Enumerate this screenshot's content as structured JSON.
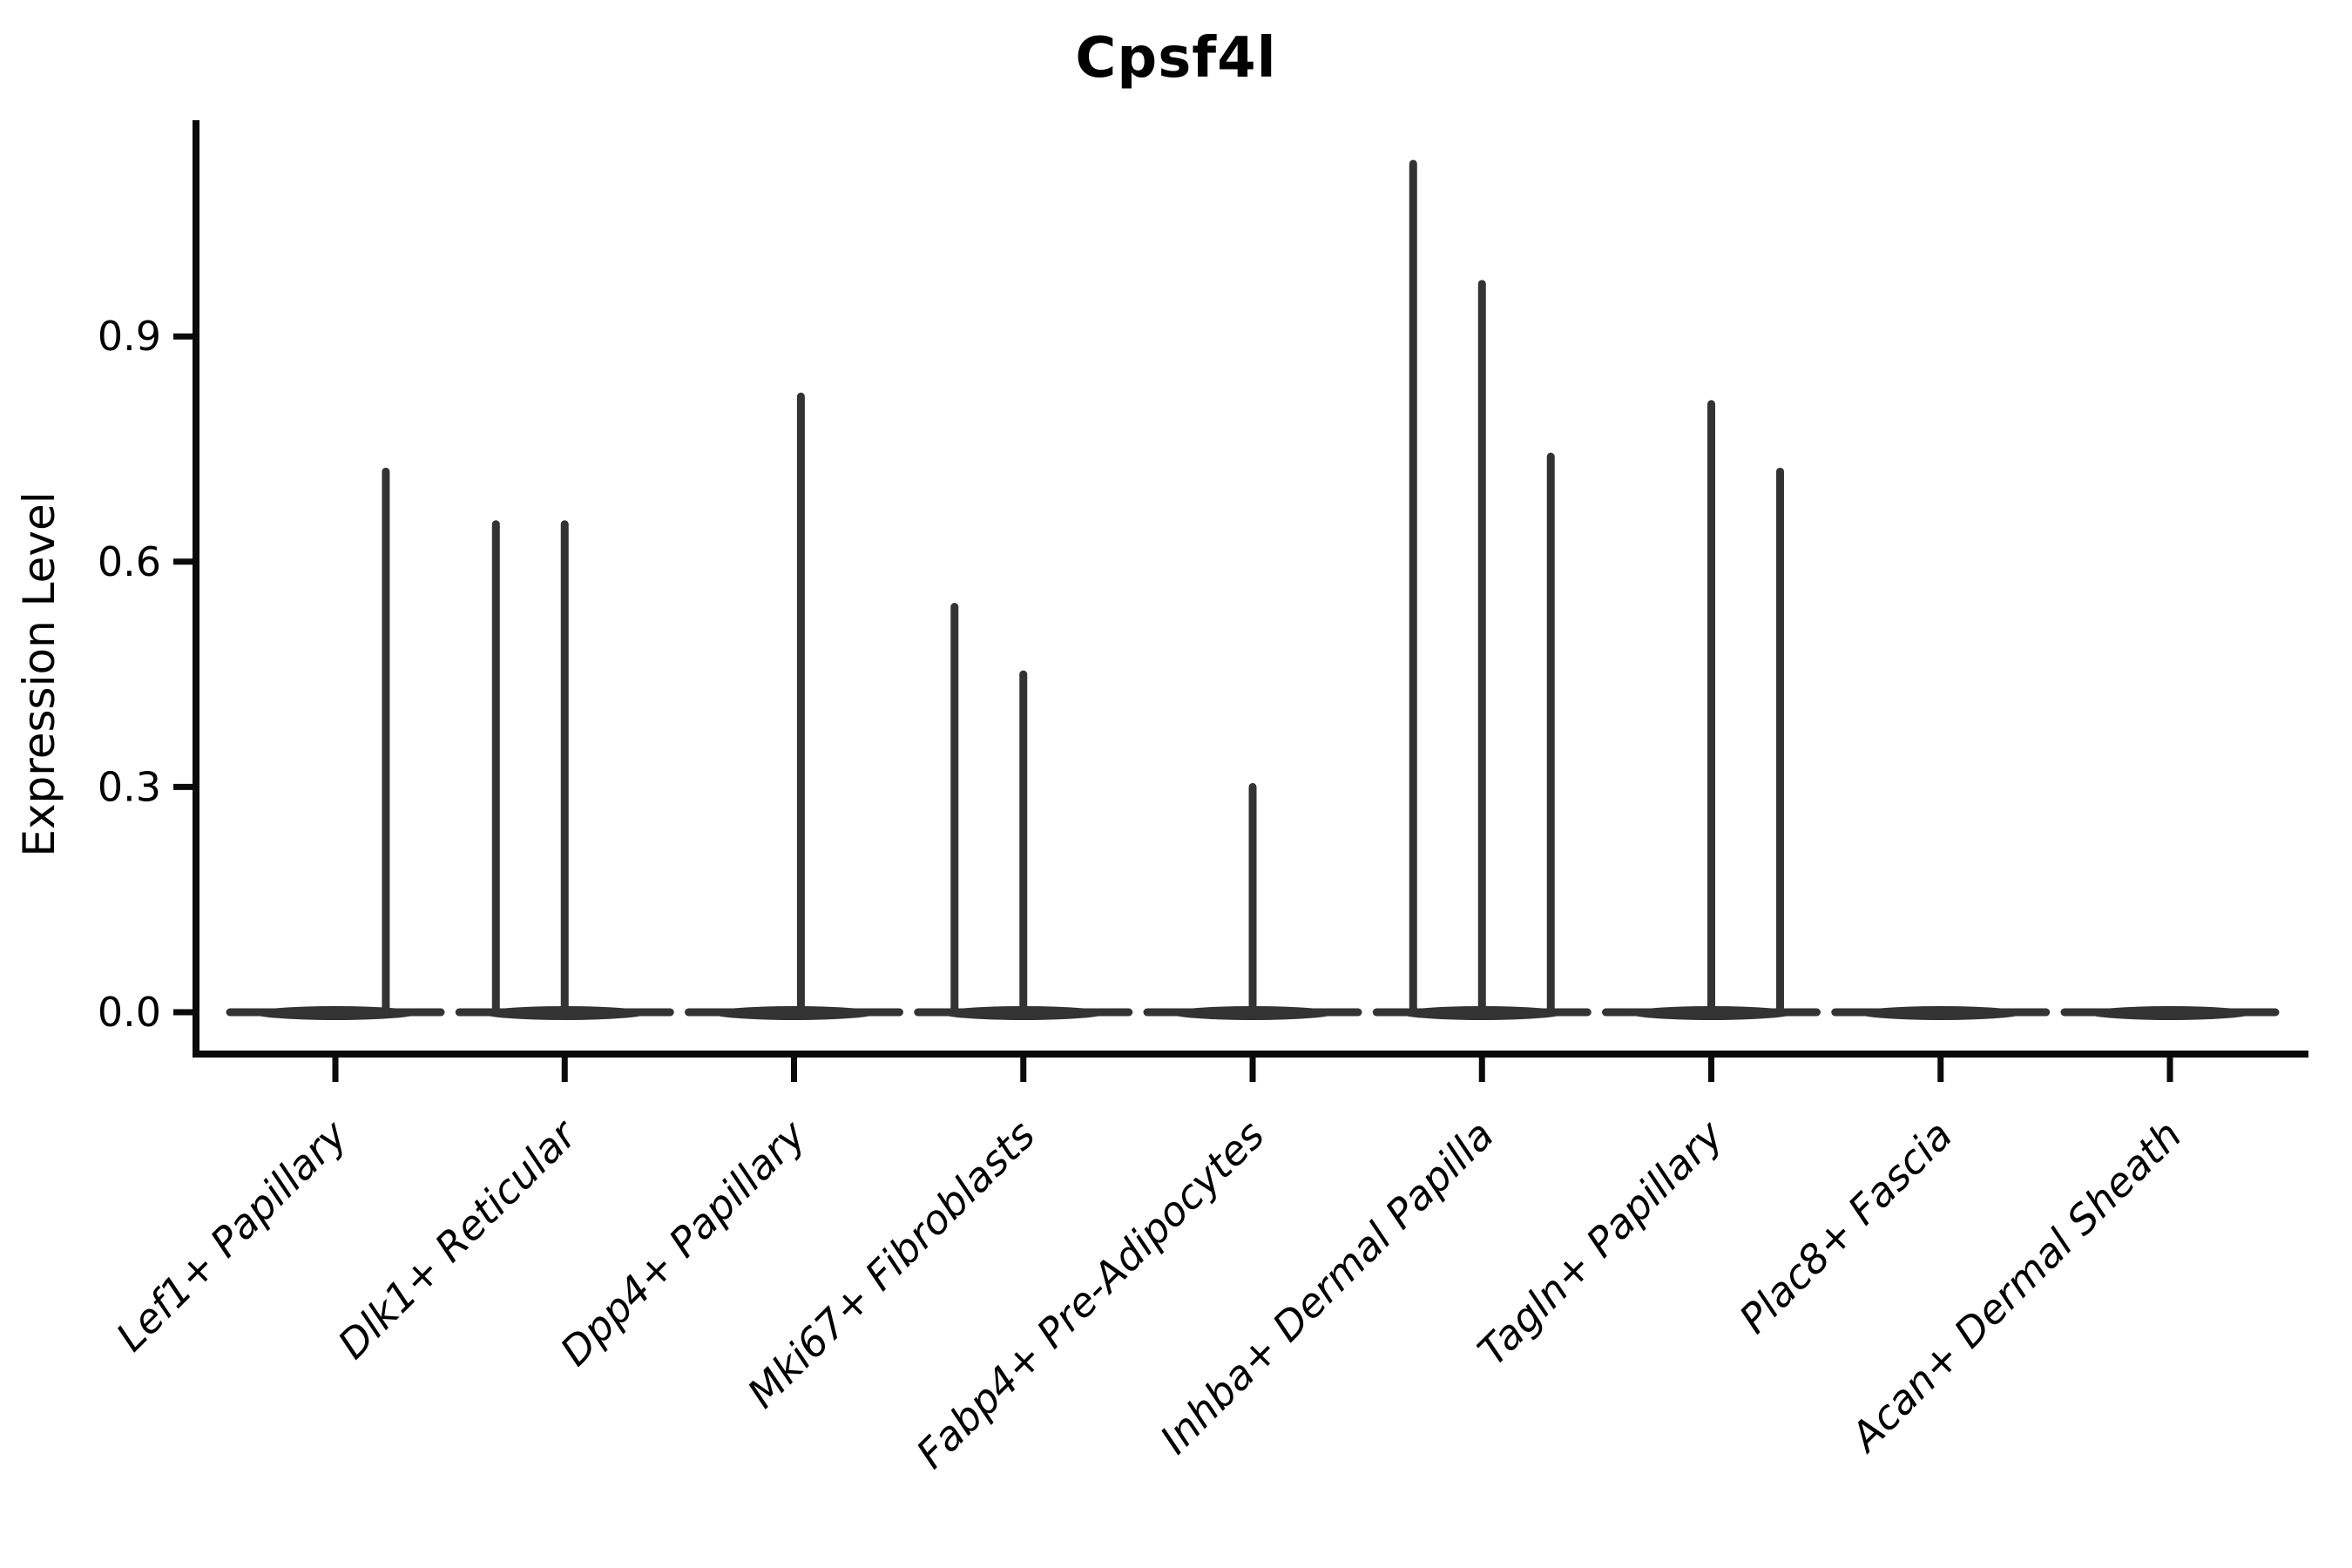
{
  "title": "Cpsf4l",
  "y_axis": {
    "label": "Expression Level",
    "tick_labels": [
      "0.0",
      "0.3",
      "0.6",
      "0.9"
    ]
  },
  "x_axis": {
    "tick_labels": [
      "Lef1+ Papillary",
      "Dlk1+ Reticular",
      "Dpp4+ Papillary",
      "Mki67+ Fibroblasts",
      "Fabp4+ Pre-Adipocytes",
      "Inhba+ Dermal Papilla",
      "Tagln+ Papillary",
      "Plac8+ Fascia",
      "Acan+ Dermal Sheath"
    ]
  },
  "colors": {
    "axis": "#0a0a0a",
    "text": "#000000",
    "violin": "#333333"
  },
  "chart_data": {
    "type": "violin",
    "title": "Cpsf4l",
    "xlabel": "",
    "ylabel": "Expression Level",
    "ylim": [
      -0.056,
      1.186
    ],
    "yticks": [
      0.0,
      0.3,
      0.6,
      0.9
    ],
    "grid": false,
    "legend": "none",
    "categories": [
      "Lef1+ Papillary",
      "Dlk1+ Reticular",
      "Dpp4+ Papillary",
      "Mki67+ Fibroblasts",
      "Fabp4+ Pre-Adipocytes",
      "Inhba+ Dermal Papilla",
      "Tagln+ Papillary",
      "Plac8+ Fascia",
      "Acan+ Dermal Sheath"
    ],
    "description": "Violin plot of Cpsf4l expression; each violin is collapsed to a flat bar at 0 with thin vertical spikes marking rare expressing cells (spike height = max expression level).",
    "series": [
      {
        "category": "Lef1+ Papillary",
        "baseline_value": 0,
        "spikes": [
          {
            "dx": 0.22,
            "value": 0.72
          }
        ]
      },
      {
        "category": "Dlk1+ Reticular",
        "baseline_value": 0,
        "spikes": [
          {
            "dx": -0.3,
            "value": 0.65
          },
          {
            "dx": 0.0,
            "value": 0.65
          }
        ]
      },
      {
        "category": "Dpp4+ Papillary",
        "baseline_value": 0,
        "spikes": [
          {
            "dx": 0.03,
            "value": 0.82
          }
        ]
      },
      {
        "category": "Mki67+ Fibroblasts",
        "baseline_value": 0,
        "spikes": [
          {
            "dx": -0.3,
            "value": 0.54
          },
          {
            "dx": 0.0,
            "value": 0.45
          }
        ]
      },
      {
        "category": "Fabp4+ Pre-Adipocytes",
        "baseline_value": 0,
        "spikes": [
          {
            "dx": 0.0,
            "value": 0.3
          }
        ]
      },
      {
        "category": "Inhba+ Dermal Papilla",
        "baseline_value": 0,
        "spikes": [
          {
            "dx": -0.3,
            "value": 1.13
          },
          {
            "dx": 0.0,
            "value": 0.97
          },
          {
            "dx": 0.3,
            "value": 0.74
          }
        ]
      },
      {
        "category": "Tagln+ Papillary",
        "baseline_value": 0,
        "spikes": [
          {
            "dx": 0.0,
            "value": 0.81
          },
          {
            "dx": 0.3,
            "value": 0.72
          }
        ]
      },
      {
        "category": "Plac8+ Fascia",
        "baseline_value": 0,
        "spikes": []
      },
      {
        "category": "Acan+ Dermal Sheath",
        "baseline_value": 0,
        "spikes": []
      }
    ]
  }
}
